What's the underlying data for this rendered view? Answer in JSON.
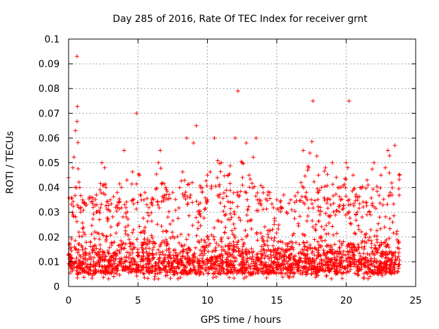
{
  "chart_data": {
    "type": "scatter",
    "title": "Day 285 of 2016, Rate Of TEC Index for receiver grnt",
    "xlabel": "GPS time / hours",
    "ylabel": "ROTI / TECUs",
    "xlim": [
      0,
      25
    ],
    "ylim": [
      0,
      0.1
    ],
    "xticks": [
      0,
      5,
      10,
      15,
      20,
      25
    ],
    "yticks": [
      0,
      0.01,
      0.02,
      0.03,
      0.04,
      0.05,
      0.06,
      0.07,
      0.08,
      0.09,
      0.1
    ],
    "xtick_labels": [
      "0",
      "5",
      "10",
      "15",
      "20",
      "25"
    ],
    "ytick_labels": [
      "0",
      "0.01",
      "0.02",
      "0.03",
      "0.04",
      "0.05",
      "0.06",
      "0.07",
      "0.08",
      "0.09",
      "0.1"
    ],
    "grid": true,
    "marker": "+",
    "color": "#ff0000",
    "x_range_of_data": [
      0,
      23.85
    ],
    "series": [
      {
        "name": "ROTI",
        "envelope_upper": [
          [
            0.0,
            0.044
          ],
          [
            0.3,
            0.048
          ],
          [
            0.5,
            0.063
          ],
          [
            0.6,
            0.093
          ],
          [
            0.8,
            0.04
          ],
          [
            1.0,
            0.035
          ],
          [
            1.5,
            0.036
          ],
          [
            2.0,
            0.037
          ],
          [
            2.4,
            0.05
          ],
          [
            2.6,
            0.048
          ],
          [
            3.0,
            0.035
          ],
          [
            3.5,
            0.038
          ],
          [
            4.0,
            0.055
          ],
          [
            4.2,
            0.043
          ],
          [
            4.9,
            0.07
          ],
          [
            5.1,
            0.045
          ],
          [
            5.5,
            0.038
          ],
          [
            6.0,
            0.035
          ],
          [
            6.6,
            0.055
          ],
          [
            7.0,
            0.04
          ],
          [
            7.5,
            0.038
          ],
          [
            8.0,
            0.04
          ],
          [
            8.5,
            0.06
          ],
          [
            9.0,
            0.058
          ],
          [
            9.2,
            0.065
          ],
          [
            9.5,
            0.04
          ],
          [
            10.0,
            0.045
          ],
          [
            10.5,
            0.06
          ],
          [
            11.0,
            0.05
          ],
          [
            11.5,
            0.045
          ],
          [
            12.0,
            0.06
          ],
          [
            12.2,
            0.079
          ],
          [
            12.5,
            0.05
          ],
          [
            12.8,
            0.058
          ],
          [
            13.0,
            0.045
          ],
          [
            13.5,
            0.06
          ],
          [
            14.0,
            0.04
          ],
          [
            14.5,
            0.038
          ],
          [
            15.0,
            0.035
          ],
          [
            15.5,
            0.037
          ],
          [
            16.0,
            0.035
          ],
          [
            16.5,
            0.038
          ],
          [
            16.9,
            0.055
          ],
          [
            17.3,
            0.048
          ],
          [
            17.6,
            0.075
          ],
          [
            18.0,
            0.045
          ],
          [
            18.5,
            0.048
          ],
          [
            19.0,
            0.05
          ],
          [
            19.5,
            0.04
          ],
          [
            20.0,
            0.05
          ],
          [
            20.2,
            0.075
          ],
          [
            20.5,
            0.045
          ],
          [
            21.0,
            0.04
          ],
          [
            21.5,
            0.043
          ],
          [
            22.0,
            0.05
          ],
          [
            22.5,
            0.045
          ],
          [
            23.0,
            0.055
          ],
          [
            23.5,
            0.057
          ],
          [
            23.85,
            0.045
          ]
        ],
        "baseline": 0.013,
        "envelope_lower": 0.003
      }
    ]
  }
}
